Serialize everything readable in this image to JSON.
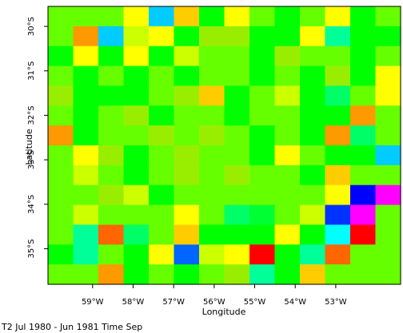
{
  "chart_data": {
    "type": "heatmap",
    "title": "",
    "caption": "T2 Jul 1980 - Jun 1981 Time Sep",
    "xlabel": "Longitude",
    "ylabel": "Latitude",
    "xlim": [
      -60.1,
      -51.4
    ],
    "ylim": [
      -35.8,
      -29.55
    ],
    "x_ticks": [
      {
        "value": -59,
        "label": "59°W"
      },
      {
        "value": -58,
        "label": "58°W"
      },
      {
        "value": -57,
        "label": "57°W"
      },
      {
        "value": -56,
        "label": "56°W"
      },
      {
        "value": -55,
        "label": "55°W"
      },
      {
        "value": -54,
        "label": "54°W"
      },
      {
        "value": -53,
        "label": "53°W"
      }
    ],
    "y_ticks": [
      {
        "value": -30,
        "label": "30°S"
      },
      {
        "value": -31,
        "label": "31°S"
      },
      {
        "value": -32,
        "label": "32°S"
      },
      {
        "value": -33,
        "label": "33°S"
      },
      {
        "value": -34,
        "label": "34°S"
      },
      {
        "value": -35,
        "label": "35°S"
      }
    ],
    "grid": false,
    "colorbar": "none",
    "colors": {
      "A": "#2ce52c",
      "B": "#00ff00",
      "C": "#66ff00",
      "D": "#99ee00",
      "E": "#ccff00",
      "F": "#ffff00",
      "O": "#ffaa00",
      "R": "#ff9900",
      "S": "#ff6600",
      "T": "#ff0000",
      "K": "#00cccc",
      "L": "#00ccff",
      "M": "#00ff99",
      "N": "#00ff66",
      "P": "#00ffff",
      "Q": "#ff00ff",
      "U": "#0000ff",
      "V": "#0066ff",
      "W": "#0033ff",
      "X": "#ff00cc",
      "Y": "#ffcc00",
      "Z": "#00ff33"
    },
    "rows": [
      "CCCFLYBFCBCFBC",
      "CRLEFBDDBBFMBB",
      "BFBFBECCBDCCBC",
      "CBCBCBCCBCBDBF",
      "DBBBCDYBCEBNCF",
      "CBCDBCCBCCBBRC",
      "RBCCDCDCBCBRNC",
      "CFDBCDCCBFCBBL",
      "CECBCDCDCCBYCC",
      "CCDEBCCCCCCFUQ",
      "CECCCFCNZCEWQC",
      "CMSNCYBBBFBPTC",
      "BMCBFVEFTBMSCC",
      "CCRBCBCDMBYCCC"
    ]
  }
}
